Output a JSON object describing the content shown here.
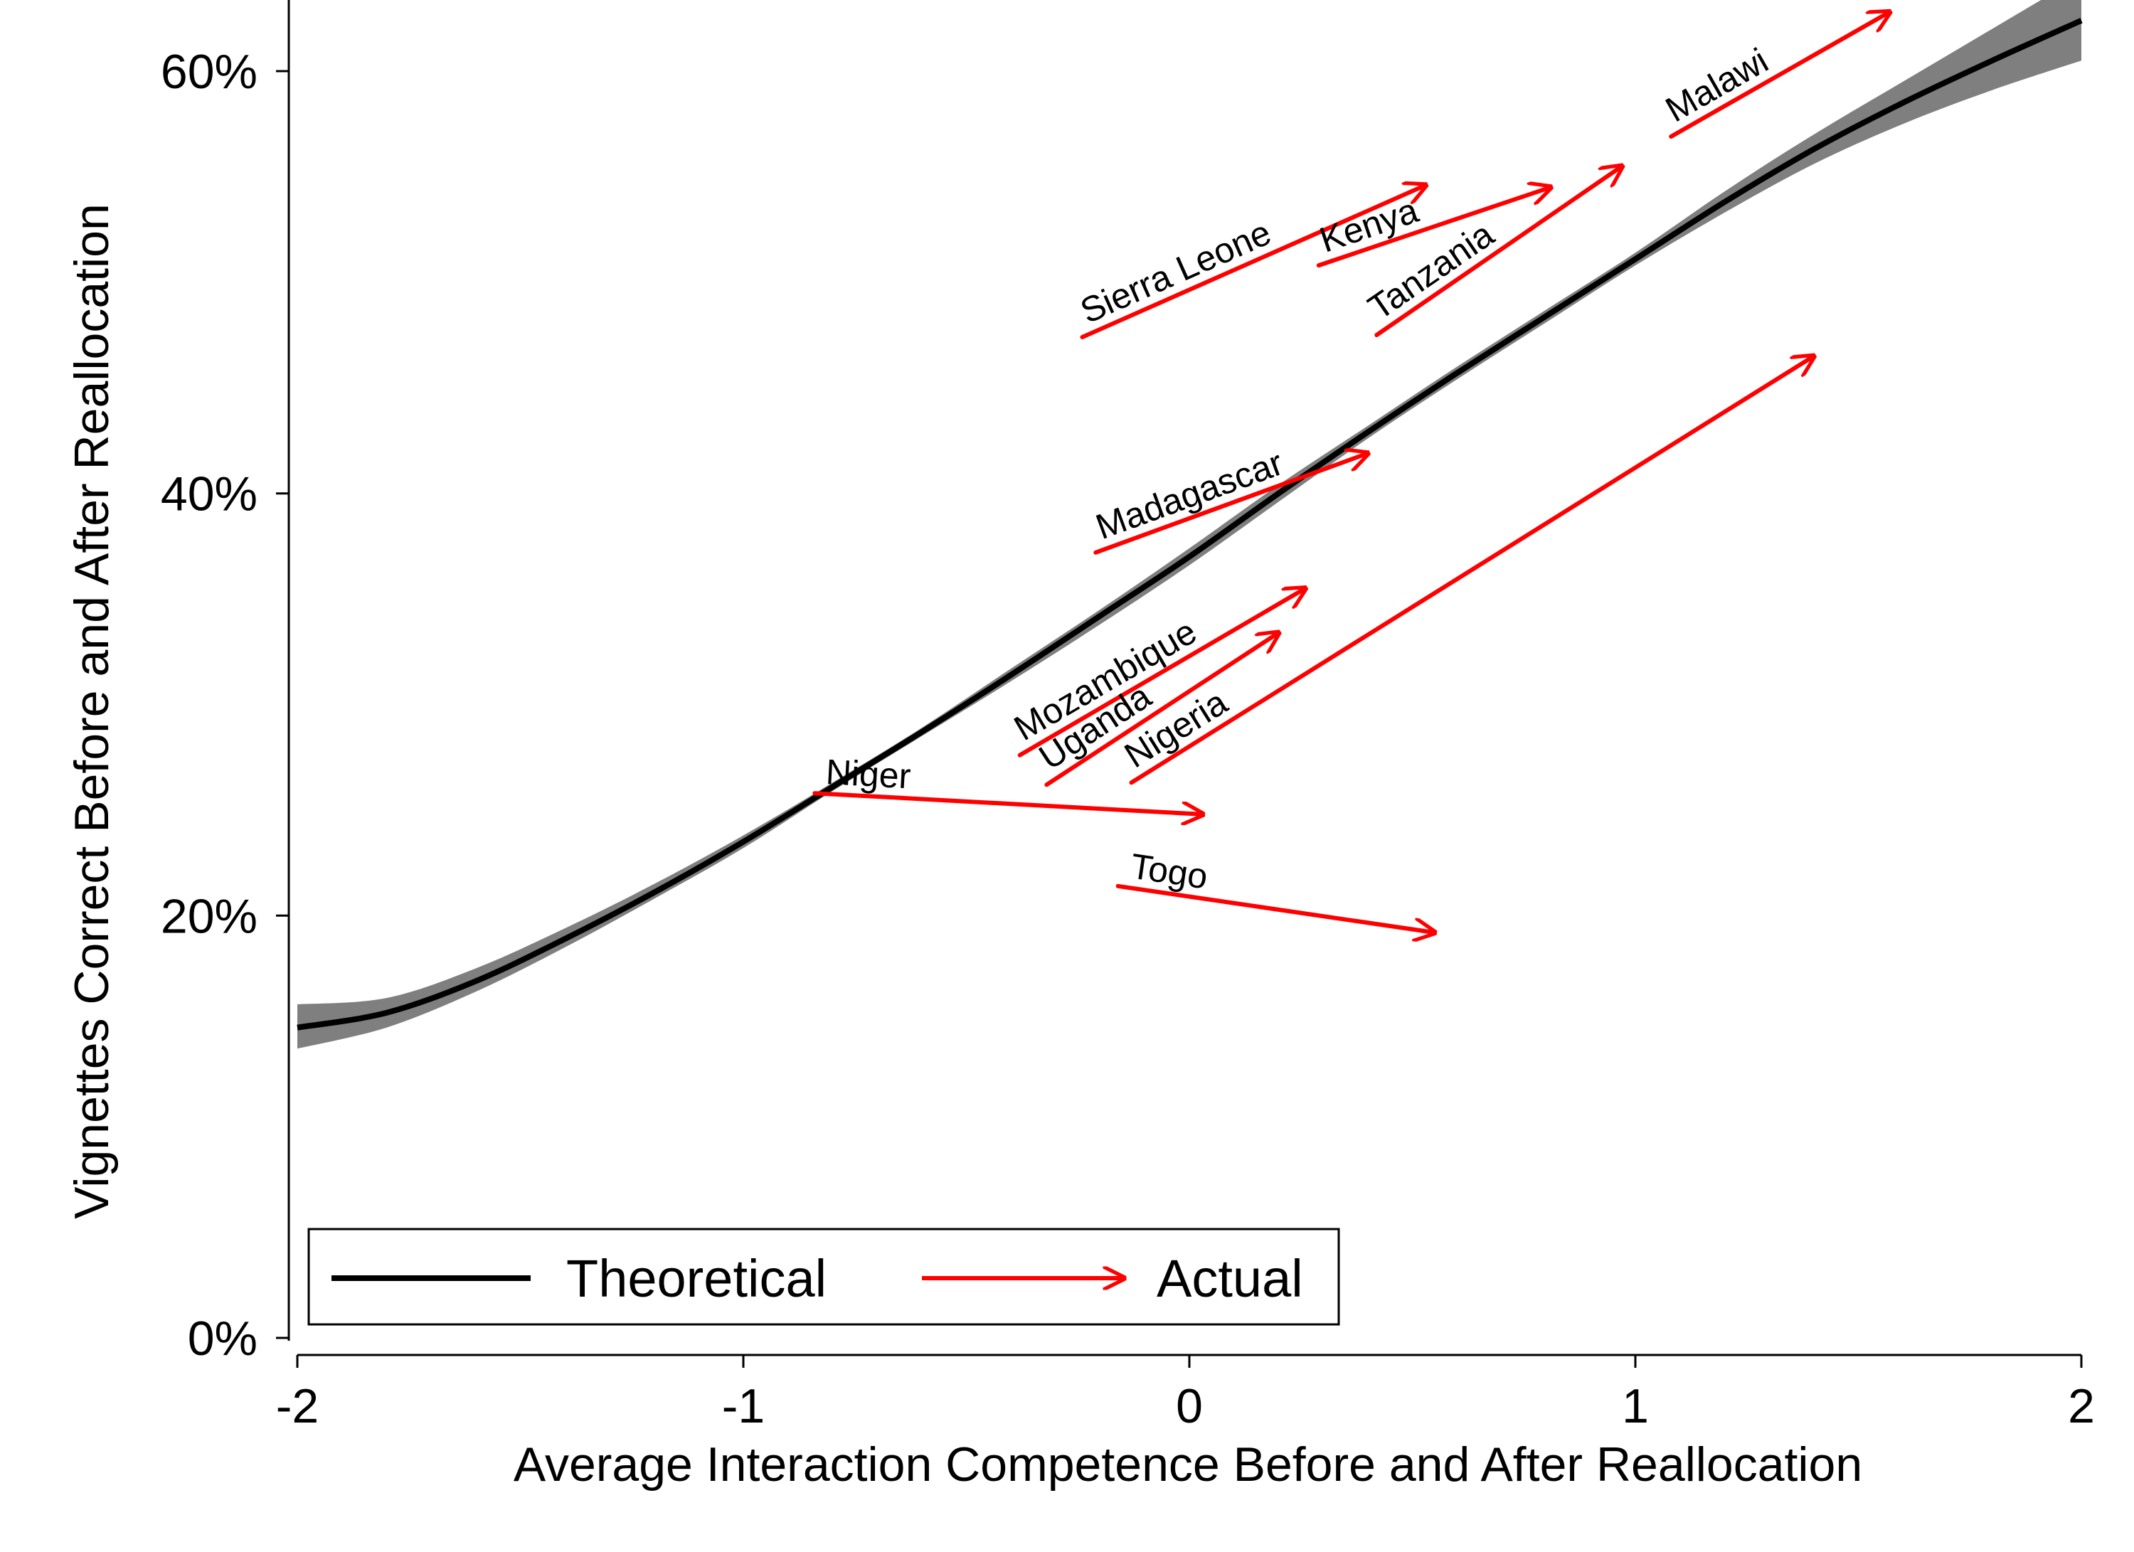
{
  "chart_data": {
    "type": "line",
    "xlabel": "Average Interaction Competence Before and After Reallocation",
    "ylabel": "Vignettes Correct Before and After Reallocation",
    "xlim": [
      -2,
      2
    ],
    "ylim": [
      0,
      0.65
    ],
    "x_ticks": [
      -2,
      -1,
      0,
      1,
      2
    ],
    "x_tick_labels": [
      "-2",
      "-1",
      "0",
      "1",
      "2"
    ],
    "y_ticks": [
      0,
      0.2,
      0.4,
      0.6
    ],
    "y_tick_labels": [
      "0%",
      "20%",
      "40%",
      "60%"
    ],
    "grid": false,
    "legend_position": "bottom-left",
    "series": [
      {
        "name": "Theoretical",
        "style": "curve with shaded confidence band",
        "color": "#000000",
        "band_color": "#7f7f7f",
        "x": [
          -2.0,
          -1.8,
          -1.6,
          -1.4,
          -1.2,
          -1.0,
          -0.8,
          -0.6,
          -0.4,
          -0.2,
          0.0,
          0.2,
          0.4,
          0.6,
          0.8,
          1.0,
          1.2,
          1.4,
          1.6,
          1.8,
          2.0
        ],
        "y": [
          0.147,
          0.154,
          0.169,
          0.189,
          0.211,
          0.235,
          0.261,
          0.287,
          0.314,
          0.342,
          0.37,
          0.4,
          0.429,
          0.457,
          0.484,
          0.511,
          0.538,
          0.563,
          0.585,
          0.605,
          0.624
        ],
        "lower": [
          0.137,
          0.147,
          0.164,
          0.185,
          0.208,
          0.232,
          0.259,
          0.285,
          0.311,
          0.338,
          0.366,
          0.396,
          0.426,
          0.454,
          0.481,
          0.508,
          0.533,
          0.556,
          0.575,
          0.591,
          0.605
        ],
        "upper": [
          0.158,
          0.161,
          0.175,
          0.194,
          0.215,
          0.238,
          0.263,
          0.289,
          0.317,
          0.345,
          0.374,
          0.404,
          0.432,
          0.46,
          0.487,
          0.514,
          0.543,
          0.57,
          0.595,
          0.62,
          0.645
        ]
      },
      {
        "name": "Actual",
        "style": "arrows from before to after",
        "color": "#ff0000",
        "arrows": [
          {
            "country": "Sierra Leone",
            "x0": -0.24,
            "y0": 0.474,
            "x1": 0.53,
            "y1": 0.546
          },
          {
            "country": "Kenya",
            "x0": 0.29,
            "y0": 0.508,
            "x1": 0.81,
            "y1": 0.545
          },
          {
            "country": "Tanzania",
            "x0": 0.42,
            "y0": 0.475,
            "x1": 0.97,
            "y1": 0.555
          },
          {
            "country": "Malawi",
            "x0": 1.08,
            "y0": 0.569,
            "x1": 1.57,
            "y1": 0.628
          },
          {
            "country": "Madagascar",
            "x0": -0.21,
            "y0": 0.372,
            "x1": 0.4,
            "y1": 0.419
          },
          {
            "country": "Mozambique",
            "x0": -0.38,
            "y0": 0.276,
            "x1": 0.26,
            "y1": 0.355
          },
          {
            "country": "Uganda",
            "x0": -0.32,
            "y0": 0.262,
            "x1": 0.2,
            "y1": 0.334
          },
          {
            "country": "Nigeria",
            "x0": -0.13,
            "y0": 0.263,
            "x1": 1.4,
            "y1": 0.465
          },
          {
            "country": "Niger",
            "x0": -0.84,
            "y0": 0.258,
            "x1": 0.03,
            "y1": 0.248
          },
          {
            "country": "Togo",
            "x0": -0.16,
            "y0": 0.214,
            "x1": 0.55,
            "y1": 0.192
          }
        ]
      }
    ],
    "annotations": [
      "Sierra Leone",
      "Kenya",
      "Tanzania",
      "Malawi",
      "Madagascar",
      "Mozambique",
      "Uganda",
      "Nigeria",
      "Niger",
      "Togo"
    ],
    "legend": {
      "entries": [
        "Theoretical",
        "Actual"
      ]
    }
  }
}
